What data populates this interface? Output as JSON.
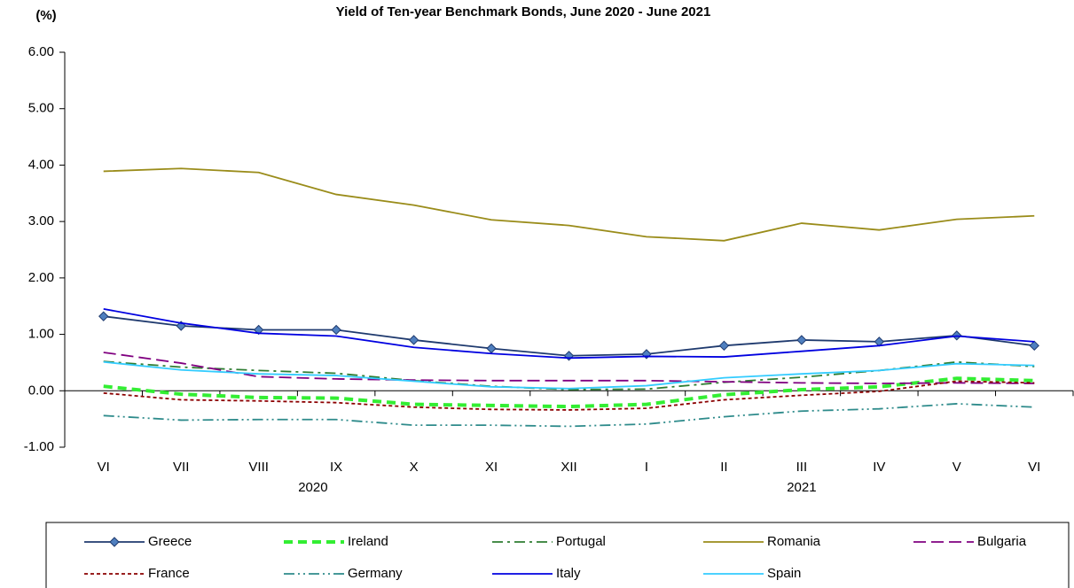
{
  "chart_data": {
    "type": "line",
    "title": "Yield of Ten-year Benchmark Bonds, June 2020 - June 2021",
    "y_label": "(%)",
    "categories": [
      "VI",
      "VII",
      "VIII",
      "IX",
      "X",
      "XI",
      "XII",
      "I",
      "II",
      "III",
      "IV",
      "V",
      "VI"
    ],
    "x_group_labels": [
      "2020",
      "2021"
    ],
    "ylim": [
      -1,
      6
    ],
    "yticks": [
      {
        "value": -1,
        "label": "-1.00"
      },
      {
        "value": 0,
        "label": "0.00"
      },
      {
        "value": 1,
        "label": "1.00"
      },
      {
        "value": 2,
        "label": "2.00"
      },
      {
        "value": 3,
        "label": "3.00"
      },
      {
        "value": 4,
        "label": "4.00"
      },
      {
        "value": 5,
        "label": "5.00"
      },
      {
        "value": 6,
        "label": "6.00"
      }
    ],
    "grid": false,
    "legend": "bottom",
    "series": [
      {
        "name": "Greece",
        "color": "#1f3a6e",
        "marker": "diamond",
        "values": [
          1.32,
          1.15,
          1.08,
          1.08,
          0.9,
          0.75,
          0.62,
          0.65,
          0.8,
          0.9,
          0.87,
          0.98,
          0.8
        ]
      },
      {
        "name": "Ireland",
        "color": "#33ee33",
        "dash": "10 6",
        "width": 4,
        "values": [
          0.08,
          -0.06,
          -0.12,
          -0.13,
          -0.24,
          -0.26,
          -0.28,
          -0.24,
          -0.07,
          0.02,
          0.07,
          0.22,
          0.18
        ]
      },
      {
        "name": "Portugal",
        "color": "#2e7d32",
        "dash": "12 5 3 5",
        "values": [
          0.52,
          0.42,
          0.36,
          0.31,
          0.18,
          0.08,
          0.02,
          0.03,
          0.15,
          0.24,
          0.36,
          0.51,
          0.43
        ]
      },
      {
        "name": "Romania",
        "color": "#9a8c1a",
        "values": [
          3.89,
          3.94,
          3.87,
          3.48,
          3.29,
          3.03,
          2.93,
          2.73,
          2.66,
          2.97,
          2.85,
          3.04,
          3.1
        ]
      },
      {
        "name": "Bulgaria",
        "color": "#800080",
        "dash": "14 6",
        "values": [
          0.68,
          0.49,
          0.25,
          0.21,
          0.19,
          0.18,
          0.18,
          0.18,
          0.16,
          0.14,
          0.13,
          0.14,
          0.13
        ]
      },
      {
        "name": "France",
        "color": "#8b0000",
        "dash": "4 3",
        "values": [
          -0.04,
          -0.16,
          -0.18,
          -0.21,
          -0.29,
          -0.33,
          -0.34,
          -0.31,
          -0.16,
          -0.08,
          -0.01,
          0.17,
          0.14
        ]
      },
      {
        "name": "Germany",
        "color": "#2e8b8b",
        "dash": "12 4 2 4 2 4",
        "values": [
          -0.44,
          -0.52,
          -0.51,
          -0.51,
          -0.61,
          -0.61,
          -0.63,
          -0.59,
          -0.46,
          -0.36,
          -0.32,
          -0.23,
          -0.29
        ]
      },
      {
        "name": "Italy",
        "color": "#0000e0",
        "values": [
          1.45,
          1.2,
          1.02,
          0.97,
          0.77,
          0.66,
          0.58,
          0.61,
          0.6,
          0.7,
          0.8,
          0.97,
          0.87
        ]
      },
      {
        "name": "Spain",
        "color": "#33ccff",
        "values": [
          0.51,
          0.37,
          0.3,
          0.27,
          0.17,
          0.07,
          0.04,
          0.09,
          0.23,
          0.3,
          0.36,
          0.48,
          0.45
        ]
      }
    ]
  }
}
